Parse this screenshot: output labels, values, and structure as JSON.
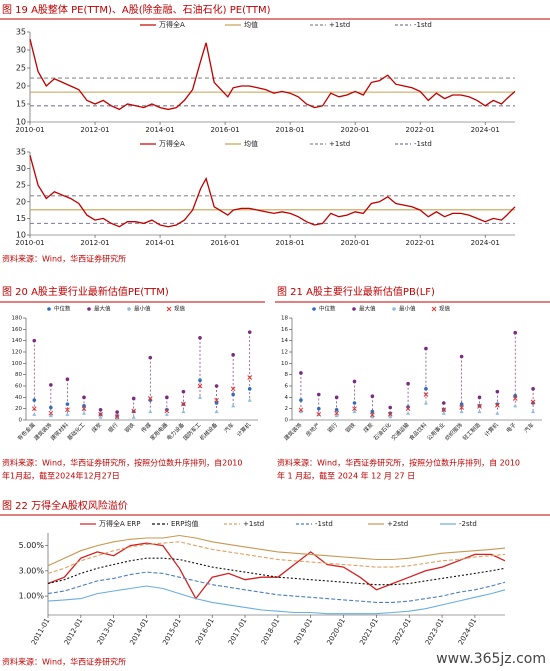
{
  "chart_data": [
    {
      "type": "line",
      "title": "图 19 A股整体 PE(TTM)、A股(除金融、石油石化) PE(TTM)",
      "x": [
        "2010-01",
        "2010-04",
        "2010-07",
        "2010-10",
        "2011-01",
        "2011-04",
        "2011-07",
        "2011-10",
        "2012-01",
        "2012-04",
        "2012-07",
        "2012-10",
        "2013-01",
        "2013-04",
        "2013-07",
        "2013-10",
        "2014-01",
        "2014-04",
        "2014-07",
        "2014-10",
        "2015-01",
        "2015-04",
        "2015-06",
        "2015-09",
        "2016-02",
        "2016-04",
        "2016-07",
        "2016-10",
        "2017-01",
        "2017-04",
        "2017-07",
        "2017-10",
        "2018-01",
        "2018-04",
        "2018-07",
        "2018-10",
        "2019-01",
        "2019-04",
        "2019-07",
        "2019-10",
        "2020-01",
        "2020-04",
        "2020-07",
        "2020-10",
        "2021-01",
        "2021-04",
        "2021-07",
        "2021-10",
        "2022-01",
        "2022-04",
        "2022-07",
        "2022-10",
        "2023-01",
        "2023-04",
        "2023-07",
        "2023-10",
        "2024-01",
        "2024-04",
        "2024-07",
        "2024-09",
        "2024-12"
      ],
      "series": [
        {
          "name": "万得全A",
          "color": "#c00000",
          "values": [
            33,
            24,
            20,
            22,
            21,
            20,
            19,
            16,
            15,
            16,
            14.5,
            13.5,
            15,
            14.5,
            14,
            15,
            14,
            13.5,
            14,
            16,
            19,
            27,
            32,
            21,
            17,
            19.5,
            20,
            20,
            19.5,
            19,
            18,
            18.5,
            18,
            17,
            15,
            14,
            14.5,
            18,
            17,
            17.5,
            18.5,
            17.5,
            21,
            21.5,
            23,
            20.5,
            20,
            19.5,
            18.5,
            16,
            18,
            16.5,
            17.5,
            17.5,
            17,
            16,
            14.5,
            16,
            15,
            16.5,
            18.5
          ]
        }
      ],
      "reference_lines": [
        {
          "name": "均值",
          "value": 18.3,
          "color": "#c8a050",
          "dash": false
        },
        {
          "name": "+1std",
          "value": 22.2,
          "color": "#8c8c8c",
          "dash": true
        },
        {
          "name": "-1std",
          "value": 14.5,
          "color": "#7a7a9a",
          "dash": true
        }
      ],
      "xlim": [
        "2010-01",
        "2024-12"
      ],
      "xticks": [
        "2010-01",
        "2012-01",
        "2014-01",
        "2016-01",
        "2018-01",
        "2020-01",
        "2022-01",
        "2024-01"
      ],
      "ylim": [
        10,
        35
      ],
      "yticks": [
        10,
        15,
        20,
        25,
        30,
        35
      ]
    },
    {
      "type": "line",
      "x": [
        "2010-01",
        "2010-04",
        "2010-07",
        "2010-10",
        "2011-01",
        "2011-04",
        "2011-07",
        "2011-10",
        "2012-01",
        "2012-04",
        "2012-07",
        "2012-10",
        "2013-01",
        "2013-04",
        "2013-07",
        "2013-10",
        "2014-01",
        "2014-04",
        "2014-07",
        "2014-10",
        "2015-01",
        "2015-04",
        "2015-06",
        "2015-09",
        "2016-02",
        "2016-04",
        "2016-07",
        "2016-10",
        "2017-01",
        "2017-04",
        "2017-07",
        "2017-10",
        "2018-01",
        "2018-04",
        "2018-07",
        "2018-10",
        "2019-01",
        "2019-04",
        "2019-07",
        "2019-10",
        "2020-01",
        "2020-04",
        "2020-07",
        "2020-10",
        "2021-01",
        "2021-04",
        "2021-07",
        "2021-10",
        "2022-01",
        "2022-04",
        "2022-07",
        "2022-10",
        "2023-01",
        "2023-04",
        "2023-07",
        "2023-10",
        "2024-01",
        "2024-04",
        "2024-07",
        "2024-09",
        "2024-12"
      ],
      "series": [
        {
          "name": "万得全A",
          "color": "#c00000",
          "values": [
            34,
            25,
            21,
            23,
            22,
            21,
            19.5,
            16,
            14.5,
            15,
            13.5,
            12.5,
            14,
            14,
            13.5,
            14.5,
            13,
            12.5,
            13,
            14.5,
            17.5,
            24,
            27,
            18.5,
            16,
            17.5,
            18,
            18,
            17.5,
            17,
            16.5,
            17,
            16.5,
            15.5,
            14,
            13,
            13.5,
            16.5,
            15.5,
            16,
            17,
            16.5,
            19.5,
            20,
            21.5,
            19.5,
            19,
            18.5,
            17.5,
            15.5,
            17,
            15.5,
            16.5,
            16.5,
            16,
            15,
            14,
            15,
            14.5,
            16,
            18.5
          ]
        }
      ],
      "reference_lines": [
        {
          "name": "均值",
          "value": 17.6,
          "color": "#c8a050",
          "dash": false
        },
        {
          "name": "+1std",
          "value": 21.8,
          "color": "#8c8c8c",
          "dash": true
        },
        {
          "name": "-1std",
          "value": 13.5,
          "color": "#7a7a9a",
          "dash": true
        }
      ],
      "xlim": [
        "2010-01",
        "2024-12"
      ],
      "xticks": [
        "2010-01",
        "2012-01",
        "2014-01",
        "2016-01",
        "2018-01",
        "2020-01",
        "2022-01",
        "2024-01"
      ],
      "ylim": [
        10,
        35
      ],
      "yticks": [
        10,
        15,
        20,
        25,
        30,
        35
      ],
      "source": "资料来源：Wind，华西证券研究所"
    },
    {
      "type": "range",
      "title": "图 20 A股主要行业最新估值PE(TTM)",
      "categories": [
        "有色金属",
        "建筑装饰",
        "建筑材料",
        "基础化工",
        "煤炭",
        "银行",
        "钢铁",
        "传媒",
        "家用电器",
        "电力设备",
        "国防军工",
        "机械设备",
        "汽车",
        "计算机"
      ],
      "series": [
        {
          "name": "中位数",
          "color": "#2f6db5",
          "marker": "circle",
          "values": [
            35,
            22,
            28,
            25,
            10,
            7,
            15,
            35,
            18,
            28,
            70,
            30,
            45,
            55
          ]
        },
        {
          "name": "最大值",
          "color": "#7b2c80",
          "marker": "circle",
          "values": [
            140,
            62,
            72,
            40,
            18,
            14,
            38,
            110,
            40,
            50,
            145,
            60,
            115,
            155
          ]
        },
        {
          "name": "最小值",
          "color": "#8fbbe0",
          "marker": "triangle",
          "values": [
            10,
            8,
            10,
            12,
            5,
            4,
            5,
            15,
            10,
            15,
            40,
            15,
            25,
            35
          ]
        },
        {
          "name": "现值",
          "color": "#e03030",
          "marker": "x",
          "values": [
            20,
            12,
            18,
            20,
            10,
            6,
            16,
            38,
            16,
            28,
            60,
            35,
            55,
            75
          ]
        }
      ],
      "ylim": [
        0,
        180
      ],
      "yticks": [
        0,
        20,
        40,
        60,
        80,
        100,
        120,
        140,
        160,
        180
      ],
      "source": [
        "资料来源：Wind，华西证券研究所，按照分位数升序排列，自2010",
        "年1月起，截至2024年12月27日"
      ]
    },
    {
      "type": "range",
      "title": "图 21 A股主要行业最新估值PB(LF)",
      "categories": [
        "建筑装饰",
        "房地产",
        "银行",
        "钢铁",
        "煤炭",
        "石油石化",
        "交通运输",
        "食品饮料",
        "公用事业",
        "纺织服饰",
        "轻工制造",
        "计算机",
        "电子",
        "汽车"
      ],
      "series": [
        {
          "name": "中位数",
          "color": "#2f6db5",
          "marker": "circle",
          "values": [
            3.5,
            2.0,
            1.8,
            3.0,
            1.5,
            1.2,
            2.3,
            5.5,
            1.8,
            2.8,
            2.5,
            2.8,
            4.3,
            3.0
          ]
        },
        {
          "name": "最大值",
          "color": "#7b2c80",
          "marker": "circle",
          "values": [
            8.3,
            4.5,
            4.0,
            6.8,
            4.2,
            2.2,
            6.4,
            12.6,
            3.0,
            11.2,
            4.0,
            5.0,
            15.4,
            5.5
          ]
        },
        {
          "name": "最小值",
          "color": "#8fbbe0",
          "marker": "triangle",
          "values": [
            1.5,
            1.0,
            0.8,
            1.5,
            0.6,
            0.6,
            1.2,
            3.0,
            1.2,
            1.5,
            1.5,
            1.2,
            2.5,
            1.5
          ]
        },
        {
          "name": "现值",
          "color": "#e03030",
          "marker": "x",
          "values": [
            1.8,
            1.0,
            1.2,
            2.0,
            0.9,
            1.0,
            2.0,
            4.5,
            1.8,
            2.2,
            2.4,
            2.6,
            3.8,
            3.2
          ]
        }
      ],
      "ylim": [
        0,
        18
      ],
      "yticks": [
        0,
        2,
        4,
        6,
        8,
        10,
        12,
        14,
        16,
        18
      ],
      "source": [
        "资料来源：Wind，华西证券研究所，按照分位数升序排列，自 2010",
        "年 1 月起，截至 2024 年 12 月 27 日"
      ]
    },
    {
      "type": "line",
      "title": "图 22 万得全A股权风险溢价",
      "x": [
        "2011-01",
        "2011-07",
        "2012-01",
        "2012-07",
        "2013-01",
        "2013-07",
        "2014-01",
        "2014-07",
        "2015-01",
        "2015-07",
        "2016-01",
        "2016-07",
        "2017-01",
        "2017-07",
        "2018-01",
        "2018-07",
        "2019-01",
        "2019-07",
        "2020-01",
        "2020-07",
        "2021-01",
        "2021-07",
        "2022-01",
        "2022-07",
        "2023-01",
        "2023-07",
        "2024-01",
        "2024-07",
        "2024-12"
      ],
      "series": [
        {
          "name": "万得全A ERP",
          "color": "#d42020",
          "dash": false,
          "values": [
            2.0,
            2.5,
            4.0,
            4.5,
            4.2,
            5.0,
            5.2,
            5.0,
            3.2,
            0.8,
            2.5,
            2.8,
            2.3,
            2.5,
            2.5,
            3.5,
            4.5,
            3.5,
            3.3,
            2.5,
            1.5,
            2.0,
            2.5,
            3.0,
            3.3,
            3.8,
            4.3,
            4.3,
            3.8
          ]
        },
        {
          "name": "ERP均值",
          "color": "#111111",
          "dash": true,
          "values": [
            2.0,
            2.3,
            2.8,
            3.2,
            3.5,
            3.8,
            4.0,
            4.0,
            3.9,
            3.6,
            3.3,
            3.1,
            2.9,
            2.7,
            2.5,
            2.4,
            2.3,
            2.2,
            2.1,
            2.0,
            1.9,
            1.9,
            2.0,
            2.2,
            2.4,
            2.6,
            2.8,
            3.0,
            3.2
          ]
        },
        {
          "name": "+1std",
          "color": "#e0a060",
          "dash": true,
          "values": [
            2.8,
            3.2,
            3.8,
            4.2,
            4.6,
            4.9,
            5.1,
            5.2,
            5.3,
            5.0,
            4.7,
            4.5,
            4.3,
            4.1,
            3.9,
            3.8,
            3.7,
            3.6,
            3.5,
            3.4,
            3.3,
            3.3,
            3.4,
            3.6,
            3.8,
            3.9,
            4.1,
            4.2,
            4.3
          ]
        },
        {
          "name": "-1std",
          "color": "#4a7fc0",
          "dash": true,
          "values": [
            1.2,
            1.4,
            1.8,
            2.2,
            2.4,
            2.7,
            2.9,
            2.8,
            2.5,
            2.2,
            1.9,
            1.7,
            1.5,
            1.3,
            1.1,
            1.0,
            0.9,
            0.8,
            0.7,
            0.6,
            0.5,
            0.5,
            0.6,
            0.8,
            1.0,
            1.3,
            1.5,
            1.8,
            2.1
          ]
        },
        {
          "name": "+2std",
          "color": "#c89850",
          "dash": false,
          "values": [
            3.4,
            4.0,
            4.6,
            5.0,
            5.3,
            5.5,
            5.6,
            5.6,
            5.8,
            5.6,
            5.3,
            5.1,
            4.9,
            4.7,
            4.5,
            4.4,
            4.3,
            4.2,
            4.1,
            4.0,
            3.9,
            3.9,
            4.0,
            4.2,
            4.4,
            4.5,
            4.6,
            4.7,
            4.8
          ]
        },
        {
          "name": "-2std",
          "color": "#6aaee0",
          "dash": false,
          "values": [
            0.6,
            0.7,
            0.8,
            1.2,
            1.4,
            1.6,
            1.8,
            1.6,
            1.2,
            0.8,
            0.5,
            0.3,
            0.1,
            -0.1,
            -0.2,
            -0.3,
            -0.3,
            -0.4,
            -0.4,
            -0.4,
            -0.4,
            -0.3,
            -0.2,
            0.0,
            0.3,
            0.6,
            0.9,
            1.2,
            1.5
          ]
        }
      ],
      "xlim": [
        "2011-01",
        "2024-12"
      ],
      "xticks": [
        "2011-01",
        "2012-01",
        "2013-01",
        "2014-01",
        "2015-01",
        "2016-01",
        "2017-01",
        "2018-01",
        "2019-01",
        "2020-01",
        "2021-01",
        "2022-01",
        "2023-01",
        "2024-01"
      ],
      "rotate_xlabels": true,
      "ylim": [
        -0.5,
        6
      ],
      "yticks": [
        {
          "value": 1,
          "label": "1.00%"
        },
        {
          "value": 3,
          "label": "3.00%"
        },
        {
          "value": 5,
          "label": "5.00%"
        }
      ],
      "source": "资料来源：Wind，华西证券研究所"
    }
  ],
  "watermark": "www.365jz.com"
}
